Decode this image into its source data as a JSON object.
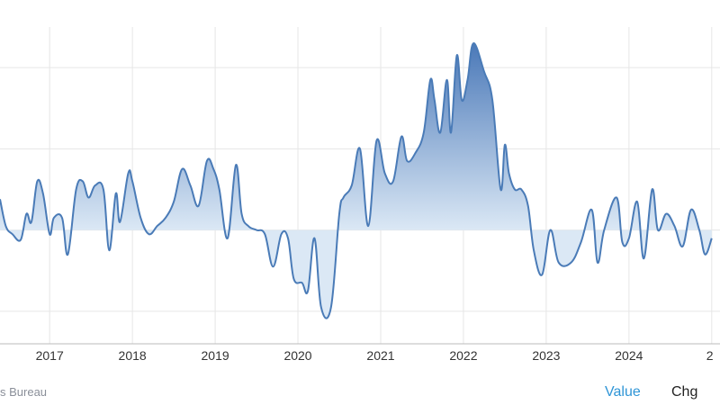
{
  "chart_data": {
    "type": "area",
    "x_tick_labels": [
      "2017",
      "2018",
      "2019",
      "2020",
      "2021",
      "2022",
      "2023",
      "2024",
      "2"
    ],
    "baseline": 0,
    "x_start": 2016.4,
    "x_end": 2025.1,
    "ylim": [
      -1.4,
      2.5
    ],
    "grid": true,
    "colors": {
      "line": "#4a7bb7",
      "fill_top": "#3e6fb3",
      "fill_bottom": "#dbe8f5",
      "grid": "#e6e6e6",
      "axis": "#bbbbbb"
    },
    "series": [
      {
        "points": [
          [
            2016.4,
            0.38
          ],
          [
            2016.47,
            0.05
          ],
          [
            2016.55,
            -0.05
          ],
          [
            2016.65,
            -0.12
          ],
          [
            2016.72,
            0.2
          ],
          [
            2016.78,
            0.1
          ],
          [
            2016.85,
            0.6
          ],
          [
            2016.92,
            0.45
          ],
          [
            2017.0,
            -0.05
          ],
          [
            2017.05,
            0.15
          ],
          [
            2017.15,
            0.15
          ],
          [
            2017.22,
            -0.3
          ],
          [
            2017.32,
            0.5
          ],
          [
            2017.4,
            0.6
          ],
          [
            2017.47,
            0.4
          ],
          [
            2017.55,
            0.55
          ],
          [
            2017.65,
            0.5
          ],
          [
            2017.72,
            -0.25
          ],
          [
            2017.8,
            0.45
          ],
          [
            2017.85,
            0.1
          ],
          [
            2017.95,
            0.7
          ],
          [
            2018.0,
            0.6
          ],
          [
            2018.1,
            0.15
          ],
          [
            2018.2,
            -0.05
          ],
          [
            2018.3,
            0.05
          ],
          [
            2018.4,
            0.15
          ],
          [
            2018.5,
            0.35
          ],
          [
            2018.6,
            0.75
          ],
          [
            2018.7,
            0.55
          ],
          [
            2018.8,
            0.3
          ],
          [
            2018.9,
            0.85
          ],
          [
            2018.98,
            0.75
          ],
          [
            2019.05,
            0.5
          ],
          [
            2019.15,
            -0.1
          ],
          [
            2019.25,
            0.8
          ],
          [
            2019.32,
            0.2
          ],
          [
            2019.4,
            0.05
          ],
          [
            2019.5,
            0.0
          ],
          [
            2019.6,
            -0.05
          ],
          [
            2019.7,
            -0.45
          ],
          [
            2019.8,
            -0.05
          ],
          [
            2019.88,
            -0.1
          ],
          [
            2019.95,
            -0.6
          ],
          [
            2020.05,
            -0.65
          ],
          [
            2020.12,
            -0.75
          ],
          [
            2020.2,
            -0.1
          ],
          [
            2020.28,
            -0.95
          ],
          [
            2020.4,
            -0.95
          ],
          [
            2020.5,
            0.2
          ],
          [
            2020.55,
            0.4
          ],
          [
            2020.65,
            0.55
          ],
          [
            2020.75,
            1.0
          ],
          [
            2020.85,
            0.05
          ],
          [
            2020.95,
            1.1
          ],
          [
            2021.05,
            0.7
          ],
          [
            2021.15,
            0.6
          ],
          [
            2021.25,
            1.15
          ],
          [
            2021.32,
            0.85
          ],
          [
            2021.42,
            0.95
          ],
          [
            2021.52,
            1.2
          ],
          [
            2021.6,
            1.85
          ],
          [
            2021.65,
            1.6
          ],
          [
            2021.72,
            1.2
          ],
          [
            2021.8,
            1.85
          ],
          [
            2021.85,
            1.2
          ],
          [
            2021.92,
            2.15
          ],
          [
            2021.98,
            1.6
          ],
          [
            2022.05,
            1.85
          ],
          [
            2022.12,
            2.3
          ],
          [
            2022.25,
            1.95
          ],
          [
            2022.35,
            1.6
          ],
          [
            2022.45,
            0.5
          ],
          [
            2022.5,
            1.05
          ],
          [
            2022.55,
            0.7
          ],
          [
            2022.62,
            0.5
          ],
          [
            2022.7,
            0.5
          ],
          [
            2022.78,
            0.3
          ],
          [
            2022.85,
            -0.25
          ],
          [
            2022.95,
            -0.55
          ],
          [
            2023.05,
            0.0
          ],
          [
            2023.15,
            -0.4
          ],
          [
            2023.3,
            -0.4
          ],
          [
            2023.42,
            -0.15
          ],
          [
            2023.55,
            0.25
          ],
          [
            2023.62,
            -0.4
          ],
          [
            2023.7,
            0.0
          ],
          [
            2023.85,
            0.4
          ],
          [
            2023.92,
            -0.15
          ],
          [
            2024.0,
            -0.1
          ],
          [
            2024.1,
            0.35
          ],
          [
            2024.18,
            -0.35
          ],
          [
            2024.28,
            0.5
          ],
          [
            2024.35,
            0.0
          ],
          [
            2024.45,
            0.2
          ],
          [
            2024.55,
            0.05
          ],
          [
            2024.65,
            -0.2
          ],
          [
            2024.75,
            0.25
          ],
          [
            2024.85,
            0.0
          ],
          [
            2024.92,
            -0.3
          ],
          [
            2025.0,
            -0.1
          ]
        ]
      }
    ]
  },
  "footer": {
    "source": "s Bureau",
    "tabs": [
      "Value",
      "Chg"
    ]
  }
}
